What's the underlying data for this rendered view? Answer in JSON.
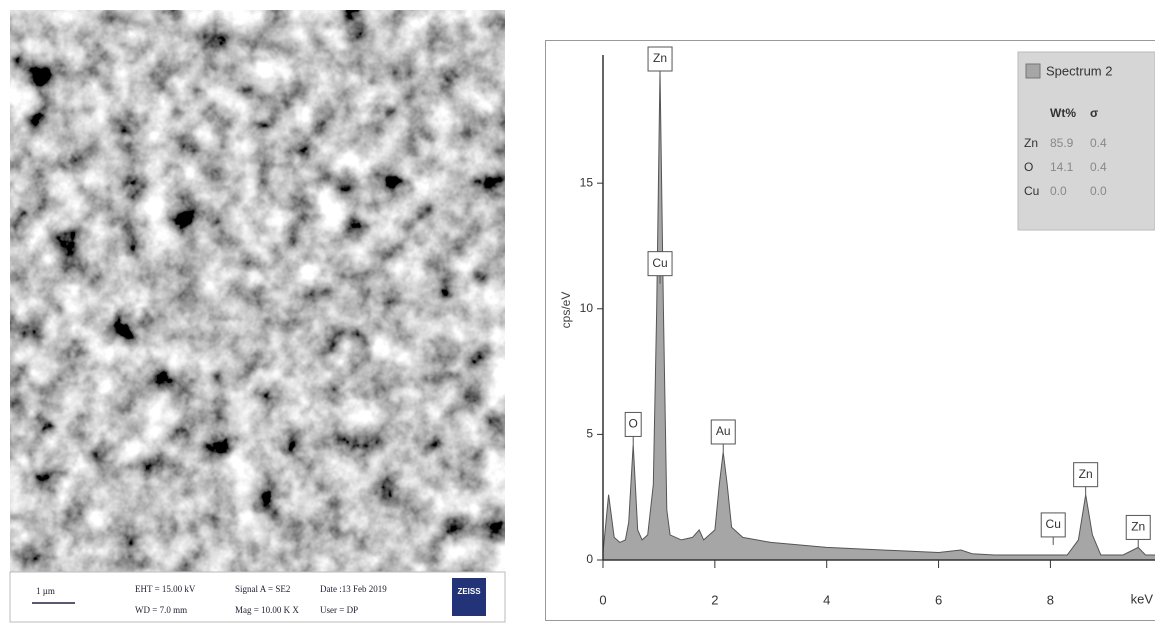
{
  "micrograph": {
    "scale_bar": "1 µm",
    "eht": "EHT = 15.00 kV",
    "wd": "WD = 7.0 mm",
    "signal": "Signal A = SE2",
    "mag": "Mag = 10.00 K X",
    "date": "Date :13 Feb 2019",
    "user": "User = DP",
    "brand": "ZEISS"
  },
  "chart_data": {
    "type": "area",
    "ylabel": "cps/eV",
    "xlabel": "keV",
    "x": [
      0,
      0.1,
      0.2,
      0.3,
      0.4,
      0.46,
      0.54,
      0.62,
      0.7,
      0.8,
      0.9,
      0.96,
      1.02,
      1.08,
      1.14,
      1.2,
      1.4,
      1.6,
      1.72,
      1.8,
      2.0,
      2.08,
      2.15,
      2.22,
      2.3,
      2.5,
      3,
      3.5,
      4,
      5,
      6,
      6.4,
      6.6,
      7,
      8,
      8.3,
      8.5,
      8.63,
      8.75,
      8.9,
      9.3,
      9.57,
      9.7,
      9.87
    ],
    "series": [
      {
        "name": "Spectrum 2",
        "color": "#a6a6a6",
        "values": [
          0.3,
          2.6,
          0.9,
          0.7,
          0.8,
          1.5,
          4.6,
          1.2,
          0.8,
          1.0,
          3,
          10,
          19.5,
          10,
          2,
          1.0,
          0.8,
          0.9,
          1.2,
          0.8,
          1.2,
          3,
          4.3,
          3,
          1.3,
          0.9,
          0.7,
          0.6,
          0.5,
          0.4,
          0.3,
          0.4,
          0.25,
          0.2,
          0.2,
          0.2,
          0.8,
          2.6,
          1.0,
          0.2,
          0.2,
          0.5,
          0.2,
          0.2
        ]
      }
    ],
    "xlim": [
      0,
      9.87
    ],
    "ylim": [
      0,
      20.5
    ],
    "xticks": [
      0,
      2,
      4,
      6,
      8
    ],
    "yticks": [
      0,
      5,
      10,
      15
    ],
    "annotations": [
      {
        "text": "Zn",
        "x": 1.02,
        "y": 19.5
      },
      {
        "text": "Cu",
        "x": 1.02,
        "y": 11
      },
      {
        "text": "O",
        "x": 0.54,
        "y": 4.6
      },
      {
        "text": "Au",
        "x": 2.15,
        "y": 4.3
      },
      {
        "text": "Cu",
        "x": 8.05,
        "y": 0.6
      },
      {
        "text": "Zn",
        "x": 8.63,
        "y": 2.6
      },
      {
        "text": "Zn",
        "x": 9.57,
        "y": 0.5
      }
    ],
    "table": {
      "columns": [
        "Wt%",
        "σ"
      ],
      "rows": [
        [
          "Zn",
          "85.9",
          "0.4"
        ],
        [
          "O",
          "14.1",
          "0.4"
        ],
        [
          "Cu",
          "0.0",
          "0.0"
        ]
      ]
    }
  }
}
